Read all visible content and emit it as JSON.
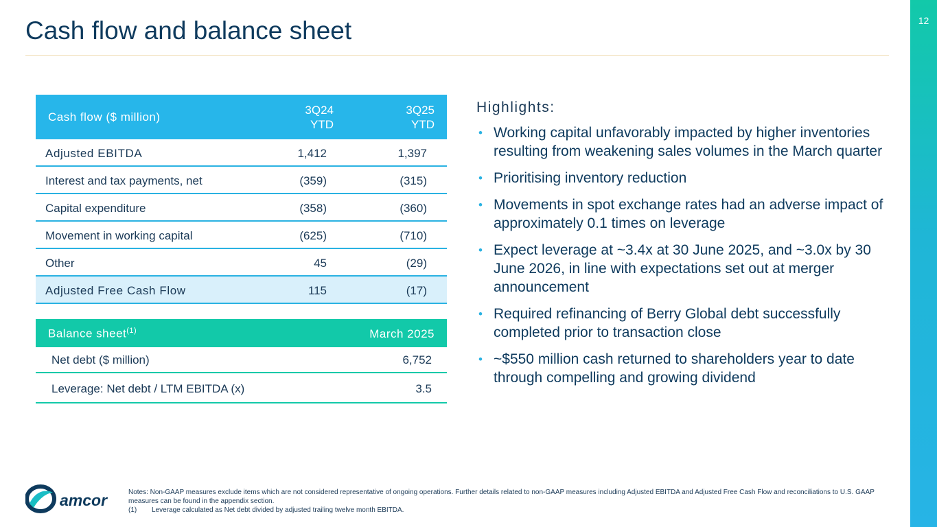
{
  "page": {
    "title": "Cash flow and balance sheet",
    "number": "12"
  },
  "cash_flow": {
    "header": {
      "label": "Cash flow ($ million)",
      "col1": "3Q24\nYTD",
      "col2": "3Q25\nYTD"
    },
    "rows": [
      {
        "label": "Adjusted EBITDA",
        "v1": "1,412",
        "v2": "1,397"
      },
      {
        "label": "Interest and tax payments, net",
        "v1": "(359)",
        "v2": "(315)"
      },
      {
        "label": "Capital expenditure",
        "v1": "(358)",
        "v2": "(360)"
      },
      {
        "label": "Movement in working capital",
        "v1": "(625)",
        "v2": "(710)"
      },
      {
        "label": "Other",
        "v1": "45",
        "v2": "(29)"
      },
      {
        "label": "Adjusted Free Cash Flow",
        "v1": "115",
        "v2": "(17)"
      }
    ]
  },
  "balance_sheet": {
    "header": {
      "label": "Balance sheet",
      "footnote_mark": "(1)",
      "col1": "March 2025"
    },
    "rows": [
      {
        "label": "Net debt ($ million)",
        "value": "6,752"
      },
      {
        "label": "Leverage: Net debt / LTM EBITDA (x)",
        "value": "3.5"
      }
    ]
  },
  "highlights": {
    "title": "Highlights:",
    "items": [
      "Working capital unfavorably impacted by higher inventories resulting from weakening sales volumes in the March quarter",
      "Prioritising inventory reduction",
      "Movements in spot exchange rates had an adverse impact of approximately 0.1 times on leverage",
      "Expect leverage at ~3.4x at 30 June 2025, and ~3.0x by 30 June 2026, in line with expectations set out at merger announcement",
      "Required refinancing of Berry Global debt successfully completed prior to transaction close",
      "~$550 million cash returned to shareholders year to date through compelling and growing dividend"
    ]
  },
  "footer": {
    "notes": "Notes: Non-GAAP measures exclude items which are not considered representative of ongoing operations.  Further details related to non-GAAP measures including Adjusted EBITDA and Adjusted Free Cash Flow and reconciliations to U.S. GAAP measures can be found in the appendix section.",
    "footnote_num": "(1)",
    "footnote_text": "Leverage calculated as Net debt divided by adjusted trailing twelve month EBITDA.",
    "logo_text": "amcor"
  },
  "colors": {
    "cash_flow_header": "#27b6ea",
    "balance_sheet_header": "#12c9a9",
    "title": "#0e3a5d",
    "highlight_row": "#d9f0fb"
  }
}
